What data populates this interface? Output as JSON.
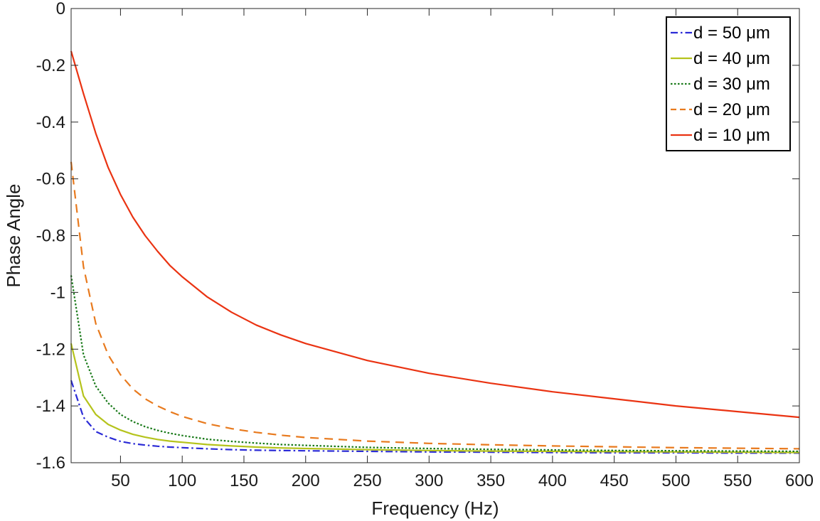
{
  "chart_data": {
    "type": "line",
    "xlabel": "Frequency (Hz)",
    "ylabel": "Phase Angle",
    "xlim": [
      10,
      600
    ],
    "ylim": [
      -1.6,
      0
    ],
    "xticks": [
      50,
      100,
      150,
      200,
      250,
      300,
      350,
      400,
      450,
      500,
      550,
      600
    ],
    "xtick_labels": [
      "50",
      "100",
      "150",
      "200",
      "250",
      "300",
      "350",
      "400",
      "450",
      "500",
      "550",
      "600"
    ],
    "yticks": [
      0,
      -0.2,
      -0.4,
      -0.6,
      -0.8,
      -1,
      -1.2,
      -1.4,
      -1.6
    ],
    "ytick_labels": [
      "0",
      "-0.2",
      "-0.4",
      "-0.6",
      "-0.8",
      "-1",
      "-1.2",
      "-1.4",
      "-1.6"
    ],
    "grid": false,
    "legend_position": "top-right",
    "x": [
      10,
      20,
      30,
      40,
      50,
      60,
      70,
      80,
      90,
      100,
      120,
      140,
      160,
      180,
      200,
      250,
      300,
      350,
      400,
      450,
      500,
      550,
      600
    ],
    "series": [
      {
        "name": "d = 50 μm",
        "color": "#2b2bd6",
        "dash": "dashdot",
        "values": [
          -1.31,
          -1.44,
          -1.49,
          -1.51,
          -1.525,
          -1.533,
          -1.538,
          -1.542,
          -1.545,
          -1.547,
          -1.551,
          -1.554,
          -1.556,
          -1.557,
          -1.558,
          -1.56,
          -1.562,
          -1.563,
          -1.564,
          -1.565,
          -1.565,
          -1.566,
          -1.566
        ]
      },
      {
        "name": "d = 40 μm",
        "color": "#b5c31c",
        "dash": "solid",
        "values": [
          -1.18,
          -1.365,
          -1.43,
          -1.465,
          -1.485,
          -1.5,
          -1.51,
          -1.518,
          -1.524,
          -1.528,
          -1.536,
          -1.541,
          -1.545,
          -1.548,
          -1.55,
          -1.554,
          -1.557,
          -1.559,
          -1.56,
          -1.561,
          -1.562,
          -1.563,
          -1.564
        ]
      },
      {
        "name": "d = 30 μm",
        "color": "#1a7a1a",
        "dash": "dotted",
        "values": [
          -0.94,
          -1.22,
          -1.33,
          -1.39,
          -1.43,
          -1.455,
          -1.473,
          -1.486,
          -1.496,
          -1.504,
          -1.517,
          -1.525,
          -1.531,
          -1.536,
          -1.539,
          -1.546,
          -1.55,
          -1.553,
          -1.555,
          -1.557,
          -1.558,
          -1.559,
          -1.56
        ]
      },
      {
        "name": "d = 20 μm",
        "color": "#e87a1e",
        "dash": "dashed",
        "values": [
          -0.54,
          -0.91,
          -1.11,
          -1.22,
          -1.29,
          -1.34,
          -1.375,
          -1.4,
          -1.42,
          -1.437,
          -1.462,
          -1.48,
          -1.493,
          -1.503,
          -1.511,
          -1.524,
          -1.532,
          -1.537,
          -1.541,
          -1.544,
          -1.547,
          -1.549,
          -1.551
        ]
      },
      {
        "name": "d = 10 μm",
        "color": "#ea3312",
        "dash": "solid",
        "values": [
          -0.15,
          -0.3,
          -0.44,
          -0.56,
          -0.655,
          -0.735,
          -0.8,
          -0.855,
          -0.905,
          -0.945,
          -1.015,
          -1.07,
          -1.115,
          -1.15,
          -1.18,
          -1.24,
          -1.285,
          -1.32,
          -1.35,
          -1.375,
          -1.4,
          -1.42,
          -1.44
        ]
      }
    ]
  }
}
